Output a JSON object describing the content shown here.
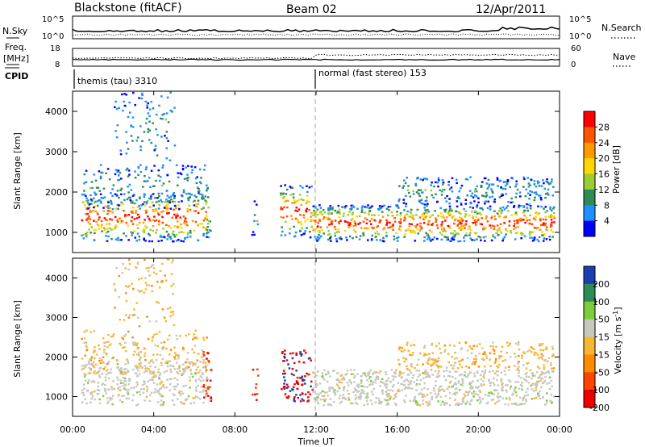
{
  "header": {
    "station": "Blackstone (fitACF)",
    "beam": "Beam 02",
    "date": "12/Apr/2011"
  },
  "status_panels": {
    "nsky_label": "N.Sky",
    "nsky_ticks": [
      "10^5",
      "10^0"
    ],
    "nsearch_ticks": [
      "10^5",
      "10^0"
    ],
    "nsearch_label": "N.Search",
    "freq_label_1": "Freq.",
    "freq_label_2": "[MHz]",
    "freq_ticks": [
      "18",
      "8"
    ],
    "nave_ticks": [
      "60",
      "0"
    ],
    "nave_label": "Nave",
    "cpid_label": "CPID",
    "cpid_segments": [
      {
        "label": "themis (tau) 3310",
        "start_hour": 0.0
      },
      {
        "label": "normal (fast stereo) 153",
        "start_hour": 12.0
      }
    ]
  },
  "chart_data": [
    {
      "type": "heatmap",
      "panel": "power",
      "xlabel": "Time UT",
      "ylabel": "Slant Range [km]",
      "xlim": [
        0,
        24
      ],
      "ylim": [
        500,
        4500
      ],
      "yticks": [
        "1000",
        "2000",
        "3000",
        "4000"
      ],
      "colorbar_label": "Power [dB]",
      "colorbar_ticks": [
        "28",
        "24",
        "20",
        "16",
        "12",
        "8",
        "4"
      ],
      "colorbar_colors": [
        "#ff0000",
        "#ff5500",
        "#ff9900",
        "#ffd700",
        "#9acd32",
        "#2e8b57",
        "#1e90ff",
        "#0000ff"
      ],
      "bands": [
        {
          "t0": 0.4,
          "t1": 6.6,
          "r0": 800,
          "r1": 2000,
          "level": "strong"
        },
        {
          "t0": 0.4,
          "t1": 6.6,
          "r0": 1600,
          "r1": 2700,
          "level": "weak"
        },
        {
          "t0": 2.0,
          "t1": 5.0,
          "r0": 2800,
          "r1": 4500,
          "level": "weak"
        },
        {
          "t0": 6.4,
          "t1": 6.8,
          "r0": 900,
          "r1": 2200,
          "level": "mid"
        },
        {
          "t0": 8.8,
          "t1": 9.1,
          "r0": 900,
          "r1": 1800,
          "level": "weak"
        },
        {
          "t0": 10.2,
          "t1": 11.8,
          "r0": 900,
          "r1": 2200,
          "level": "strong"
        },
        {
          "t0": 11.8,
          "t1": 23.7,
          "r0": 800,
          "r1": 1700,
          "level": "strong"
        },
        {
          "t0": 16.0,
          "t1": 23.7,
          "r0": 1700,
          "r1": 2400,
          "level": "weak"
        }
      ]
    },
    {
      "type": "heatmap",
      "panel": "velocity",
      "xlabel": "Time UT",
      "ylabel": "Slant Range [km]",
      "xlim": [
        0,
        24
      ],
      "ylim": [
        500,
        4500
      ],
      "yticks": [
        "1000",
        "2000",
        "3000",
        "4000"
      ],
      "xticks": [
        "00:00",
        "04:00",
        "08:00",
        "12:00",
        "16:00",
        "20:00",
        "00:00"
      ],
      "colorbar_label": "Velocity [m s",
      "colorbar_label_sup": "-1",
      "colorbar_label_end": "]",
      "colorbar_ticks": [
        "200",
        "100",
        "50",
        "15",
        "-15",
        "-50",
        "-100",
        "-200"
      ],
      "colorbar_colors": [
        "#1c3fb0",
        "#2e8b57",
        "#7ccd3c",
        "#c8c8c0",
        "#f7b733",
        "#ff8c00",
        "#ff4500",
        "#ee0000"
      ]
    }
  ]
}
